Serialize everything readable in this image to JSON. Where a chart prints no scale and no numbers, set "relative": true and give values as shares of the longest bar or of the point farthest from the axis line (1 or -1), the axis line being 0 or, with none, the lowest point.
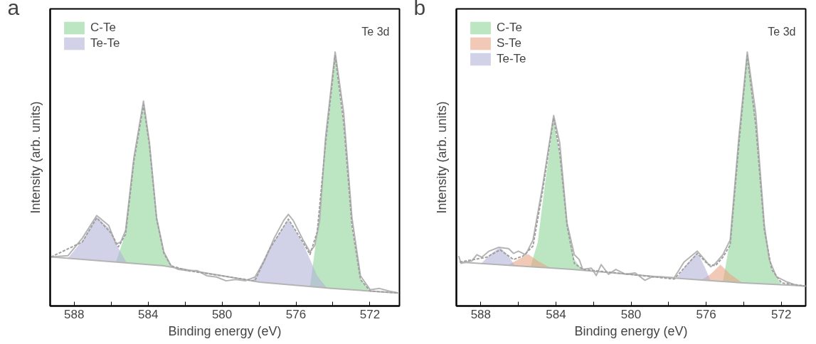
{
  "chart_data": [
    {
      "type": "area",
      "title": "a",
      "xlabel": "Binding energy (eV)",
      "ylabel": "Intensity (arb. units)",
      "relative": true,
      "xlim": [
        589.3,
        570.4
      ],
      "xticks": [
        588,
        {
          "value": 586,
          "label": null
        },
        584,
        {
          "value": 582,
          "label": null
        },
        580,
        {
          "value": 578,
          "label": null
        },
        576,
        {
          "value": 574,
          "label": null
        },
        572
      ],
      "tick_labels": "x",
      "grid": false,
      "legend": "top left",
      "annotations": [
        "Te 3d"
      ],
      "series": [
        {
          "name": "C-Te",
          "color": "#8fd39a",
          "x": [
            585.74,
            585.22,
            584.77,
            584.25,
            583.93,
            583.54,
            583.15,
            582.76
          ],
          "values": [
            0.173,
            0.287,
            0.564,
            0.787,
            0.624,
            0.337,
            0.208,
            0.153
          ]
        },
        {
          "color": "#8fd39a",
          "x": [
            575.24,
            574.85,
            574.4,
            573.88,
            573.42,
            572.97,
            572.51,
            571.99
          ],
          "values": [
            0.077,
            0.287,
            0.634,
            0.98,
            0.713,
            0.307,
            0.109,
            0.057
          ]
        },
        {
          "name": "Te-Te",
          "color": "#b3b3d9",
          "x": [
            588.34,
            587.56,
            586.78,
            586.13,
            585.61,
            585.16
          ],
          "values": [
            0.188,
            0.257,
            0.351,
            0.307,
            0.228,
            0.17
          ]
        },
        {
          "color": "#b3b3d9",
          "x": [
            578.35,
            577.44,
            576.41,
            575.63,
            574.85,
            574.33
          ],
          "values": [
            0.099,
            0.228,
            0.342,
            0.248,
            0.119,
            0.071
          ]
        },
        {
          "type": "line",
          "color": "#b4b4b4",
          "line_style": "solid",
          "x": [
            589.25,
            583.15,
            577.96,
            574.07,
            570.44
          ],
          "values": [
            0.193,
            0.158,
            0.094,
            0.069,
            0.051
          ]
        },
        {
          "type": "line",
          "color": "#b4b4b4",
          "line_style": "solid",
          "x": [
            589.25,
            588.34,
            587.56,
            586.78,
            586.13,
            585.74,
            585.48,
            585.22,
            584.77,
            584.25,
            583.93,
            583.54,
            583.15,
            582.76,
            582.37,
            581.85,
            581.33,
            580.83,
            580.3,
            579.78,
            579.26,
            578.74,
            578.22,
            577.7,
            577.18,
            576.66,
            576.41,
            576.15,
            575.63,
            575.24,
            574.98,
            574.72,
            574.4,
            573.88,
            573.42,
            572.97,
            572.51,
            571.99,
            571.48,
            570.97,
            570.44
          ],
          "values": [
            0.193,
            0.198,
            0.267,
            0.356,
            0.317,
            0.243,
            0.252,
            0.297,
            0.584,
            0.807,
            0.644,
            0.347,
            0.213,
            0.158,
            0.144,
            0.139,
            0.139,
            0.119,
            0.114,
            0.099,
            0.104,
            0.099,
            0.114,
            0.178,
            0.267,
            0.337,
            0.361,
            0.337,
            0.262,
            0.213,
            0.238,
            0.337,
            0.663,
            1.0,
            0.762,
            0.347,
            0.119,
            0.064,
            0.069,
            0.059,
            0.051
          ]
        },
        {
          "type": "line",
          "color": "#a0a0a0",
          "line_style": "dashed",
          "x": [
            589.25,
            587.56,
            586.78,
            586.0,
            585.61,
            585.22,
            584.77,
            584.25,
            583.93,
            583.54,
            583.15,
            582.76,
            581.85,
            578.22,
            577.44,
            576.41,
            575.63,
            575.24,
            574.85,
            574.4,
            573.88,
            573.42,
            572.97,
            572.51,
            571.99,
            570.44
          ],
          "values": [
            0.193,
            0.252,
            0.347,
            0.287,
            0.233,
            0.282,
            0.569,
            0.792,
            0.634,
            0.342,
            0.208,
            0.158,
            0.139,
            0.099,
            0.223,
            0.342,
            0.252,
            0.203,
            0.292,
            0.639,
            0.985,
            0.723,
            0.317,
            0.104,
            0.059,
            0.051
          ]
        }
      ]
    },
    {
      "type": "area",
      "title": "b",
      "xlabel": "Binding energy (eV)",
      "ylabel": "Intensity (arb. units)",
      "relative": true,
      "xlim": [
        589.3,
        570.7
      ],
      "xticks": [
        588,
        {
          "value": 586,
          "label": null
        },
        584,
        {
          "value": 582,
          "label": null
        },
        580,
        {
          "value": 578,
          "label": null
        },
        576,
        {
          "value": 574,
          "label": null
        },
        572
      ],
      "tick_labels": "x",
      "grid": false,
      "legend": "top left",
      "annotations": [
        "Te 3d"
      ],
      "series": [
        {
          "name": "C-Te",
          "color": "#8fd39a",
          "x": [
            585.35,
            584.97,
            584.58,
            584.12,
            583.73,
            583.41,
            583.02,
            582.57
          ],
          "values": [
            0.156,
            0.25,
            0.481,
            0.731,
            0.567,
            0.317,
            0.183,
            0.14
          ]
        },
        {
          "color": "#8fd39a",
          "x": [
            575.11,
            574.72,
            574.26,
            573.81,
            573.36,
            572.9,
            572.51,
            571.99
          ],
          "values": [
            0.096,
            0.26,
            0.644,
            0.99,
            0.731,
            0.308,
            0.144,
            0.083
          ]
        },
        {
          "name": "S-Te",
          "color": "#eaa585",
          "x": [
            586.52,
            586.0,
            585.48,
            584.97,
            584.32
          ],
          "values": [
            0.162,
            0.183,
            0.204,
            0.178,
            0.151
          ]
        },
        {
          "color": "#eaa585",
          "x": [
            576.27,
            575.76,
            575.24,
            574.72,
            574.07
          ],
          "values": [
            0.102,
            0.125,
            0.163,
            0.125,
            0.091
          ]
        },
        {
          "name": "Te-Te",
          "color": "#b3b3d9",
          "x": [
            587.95,
            587.43,
            586.98,
            586.52,
            586.2
          ],
          "values": [
            0.169,
            0.207,
            0.231,
            0.197,
            0.16
          ]
        },
        {
          "color": "#b3b3d9",
          "x": [
            577.57,
            577.05,
            576.47,
            576.08,
            575.76
          ],
          "values": [
            0.109,
            0.163,
            0.212,
            0.154,
            0.099
          ]
        },
        {
          "type": "line",
          "color": "#b4b4b4",
          "line_style": "solid",
          "x": [
            589.12,
            583.15,
            577.96,
            574.07,
            570.7
          ],
          "values": [
            0.173,
            0.144,
            0.111,
            0.091,
            0.079
          ]
        },
        {
          "type": "line",
          "color": "#b4b4b4",
          "line_style": "solid",
          "x": [
            589.18,
            589.05,
            588.47,
            588.21,
            587.95,
            587.56,
            587.04,
            586.52,
            586.26,
            586.0,
            585.61,
            585.22,
            584.71,
            584.12,
            583.8,
            583.41,
            583.02,
            582.76,
            582.57,
            582.11,
            581.85,
            581.59,
            581.2,
            580.81,
            580.29,
            579.78,
            579.26,
            578.87,
            578.35,
            577.7,
            577.18,
            576.47,
            576.14,
            575.76,
            575.5,
            575.11,
            574.72,
            574.26,
            573.81,
            573.36,
            572.9,
            572.64,
            572.26,
            571.74,
            571.22,
            570.7
          ],
          "values": [
            0.197,
            0.168,
            0.178,
            0.202,
            0.192,
            0.216,
            0.231,
            0.226,
            0.207,
            0.216,
            0.202,
            0.26,
            0.471,
            0.75,
            0.644,
            0.327,
            0.202,
            0.183,
            0.144,
            0.149,
            0.12,
            0.163,
            0.125,
            0.144,
            0.125,
            0.13,
            0.101,
            0.115,
            0.115,
            0.111,
            0.173,
            0.216,
            0.188,
            0.154,
            0.168,
            0.202,
            0.26,
            0.663,
            1.0,
            0.76,
            0.317,
            0.183,
            0.115,
            0.096,
            0.082,
            0.077
          ]
        },
        {
          "type": "line",
          "color": "#a0a0a0",
          "line_style": "dashed",
          "x": [
            589.12,
            587.69,
            586.97,
            586.26,
            585.74,
            585.22,
            584.71,
            584.12,
            583.8,
            583.41,
            583.02,
            582.57,
            577.7,
            577.18,
            576.47,
            575.89,
            575.5,
            575.11,
            574.72,
            574.26,
            573.81,
            573.36,
            572.9,
            572.51,
            571.99,
            570.7
          ],
          "values": [
            0.173,
            0.192,
            0.221,
            0.183,
            0.197,
            0.236,
            0.452,
            0.74,
            0.606,
            0.317,
            0.168,
            0.144,
            0.106,
            0.149,
            0.207,
            0.163,
            0.159,
            0.192,
            0.24,
            0.635,
            0.986,
            0.712,
            0.298,
            0.144,
            0.091,
            0.079
          ]
        }
      ]
    }
  ]
}
